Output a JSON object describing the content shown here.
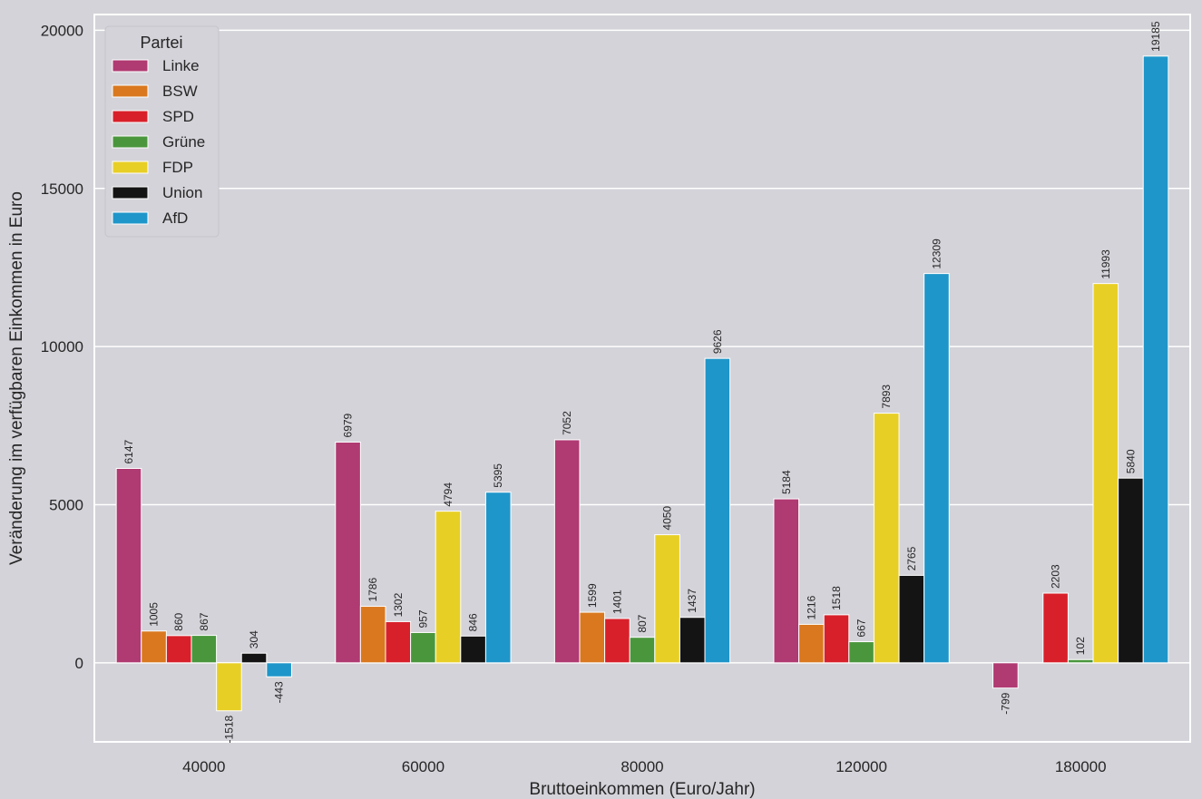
{
  "chart_data": {
    "type": "bar",
    "xlabel": "Bruttoeinkommen (Euro/Jahr)",
    "ylabel": "Veränderung im verfügbaren Einkommen in Euro",
    "categories": [
      "40000",
      "60000",
      "80000",
      "120000",
      "180000"
    ],
    "ylim": [
      -2500,
      20500
    ],
    "yticks": [
      0,
      5000,
      10000,
      15000,
      20000
    ],
    "grid": true,
    "legend": {
      "title": "Partei",
      "position": "top-left"
    },
    "series": [
      {
        "name": "Linke",
        "color": "#b03a72",
        "values": [
          6147,
          6979,
          7052,
          5184,
          -799
        ]
      },
      {
        "name": "BSW",
        "color": "#d9781f",
        "values": [
          1005,
          1786,
          1599,
          1216,
          0
        ]
      },
      {
        "name": "SPD",
        "color": "#d8202a",
        "values": [
          860,
          1302,
          1401,
          1518,
          2203
        ]
      },
      {
        "name": "Grüne",
        "color": "#4a963d",
        "values": [
          867,
          957,
          807,
          667,
          102
        ]
      },
      {
        "name": "FDP",
        "color": "#e8cf26",
        "values": [
          -1518,
          4794,
          4050,
          7893,
          11993
        ]
      },
      {
        "name": "Union",
        "color": "#141414",
        "values": [
          304,
          846,
          1437,
          2765,
          5840
        ]
      },
      {
        "name": "AfD",
        "color": "#1f96c9",
        "values": [
          -443,
          5395,
          9626,
          12309,
          19185
        ]
      }
    ],
    "labels": [
      [
        "6147",
        "6979",
        "7052",
        "5184",
        "-799"
      ],
      [
        "1005",
        "1786",
        "1599",
        "1216",
        ""
      ],
      [
        "860",
        "1302",
        "1401",
        "1518",
        "2203"
      ],
      [
        "867",
        "957",
        "807",
        "667",
        "102"
      ],
      [
        "-1518",
        "4794",
        "4050",
        "7893",
        "11993"
      ],
      [
        "304",
        "846",
        "1437",
        "2765",
        "5840"
      ],
      [
        "-443",
        "5395",
        "9626",
        "12309",
        "19185"
      ]
    ]
  }
}
